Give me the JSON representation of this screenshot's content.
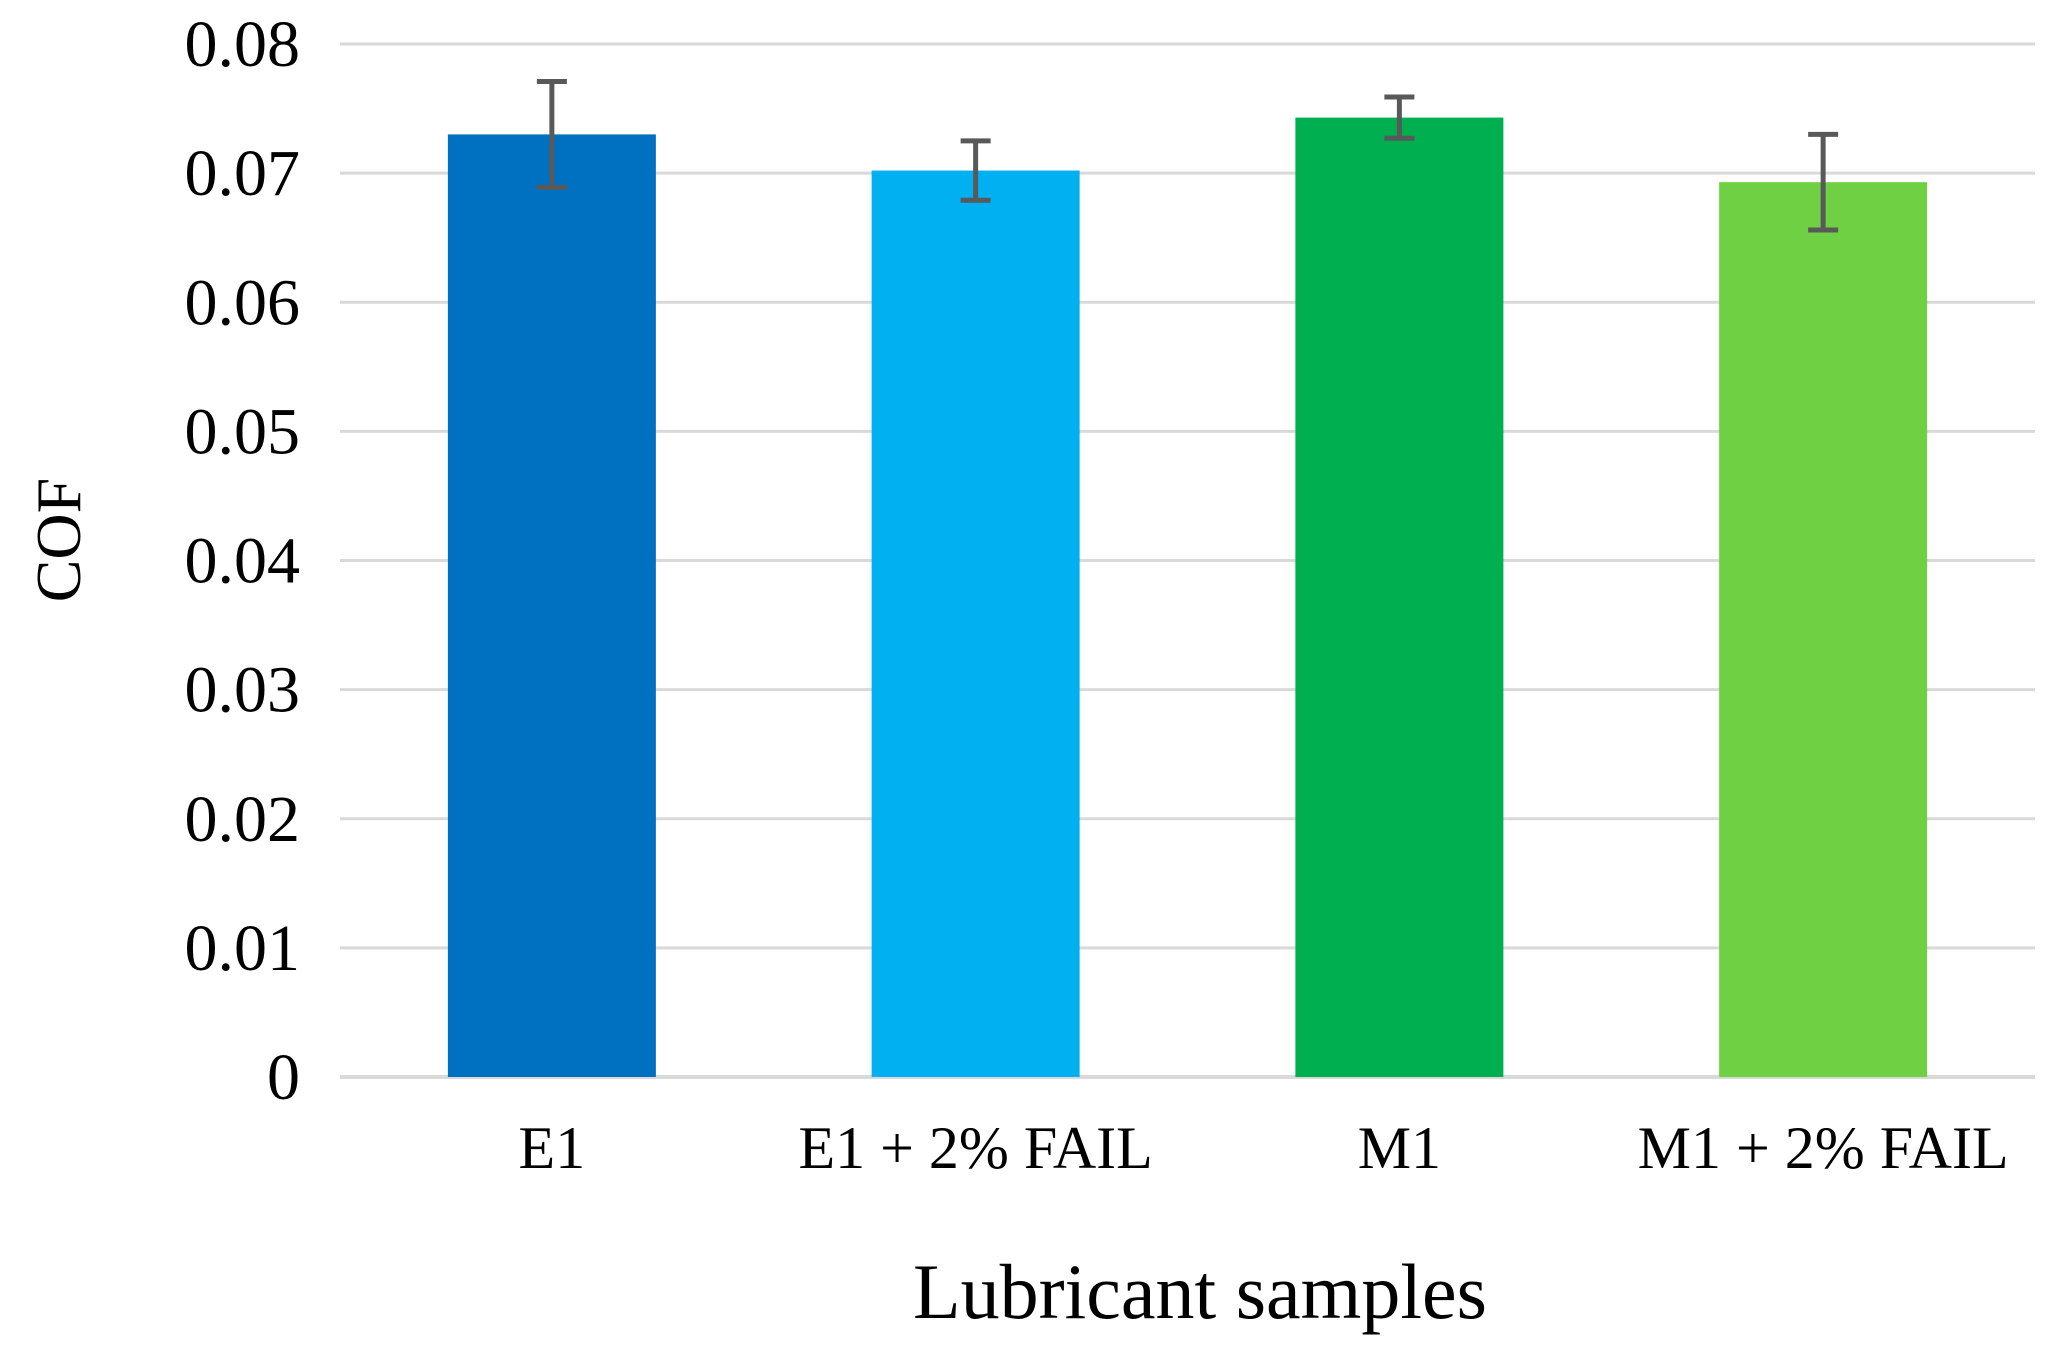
{
  "chart_data": {
    "type": "bar",
    "title": "",
    "xlabel": "Lubricant samples",
    "ylabel": "COF",
    "ylim": [
      0,
      0.08
    ],
    "yticks": [
      "0",
      "0.01",
      "0.02",
      "0.03",
      "0.04",
      "0.05",
      "0.06",
      "0.07",
      "0.08"
    ],
    "grid": true,
    "legend": "none",
    "categories": [
      "E1",
      "E1 + 2% FAIL",
      "M1",
      "M1 + 2% FAIL"
    ],
    "values": [
      0.073,
      0.0702,
      0.0743,
      0.0693
    ],
    "error": [
      0.0041,
      0.0023,
      0.0016,
      0.0037
    ],
    "colors": [
      "#0070c0",
      "#00b0f0",
      "#00b050",
      "#70d044"
    ],
    "error_color": "#595959",
    "grid_color": "#d9d9d9"
  }
}
